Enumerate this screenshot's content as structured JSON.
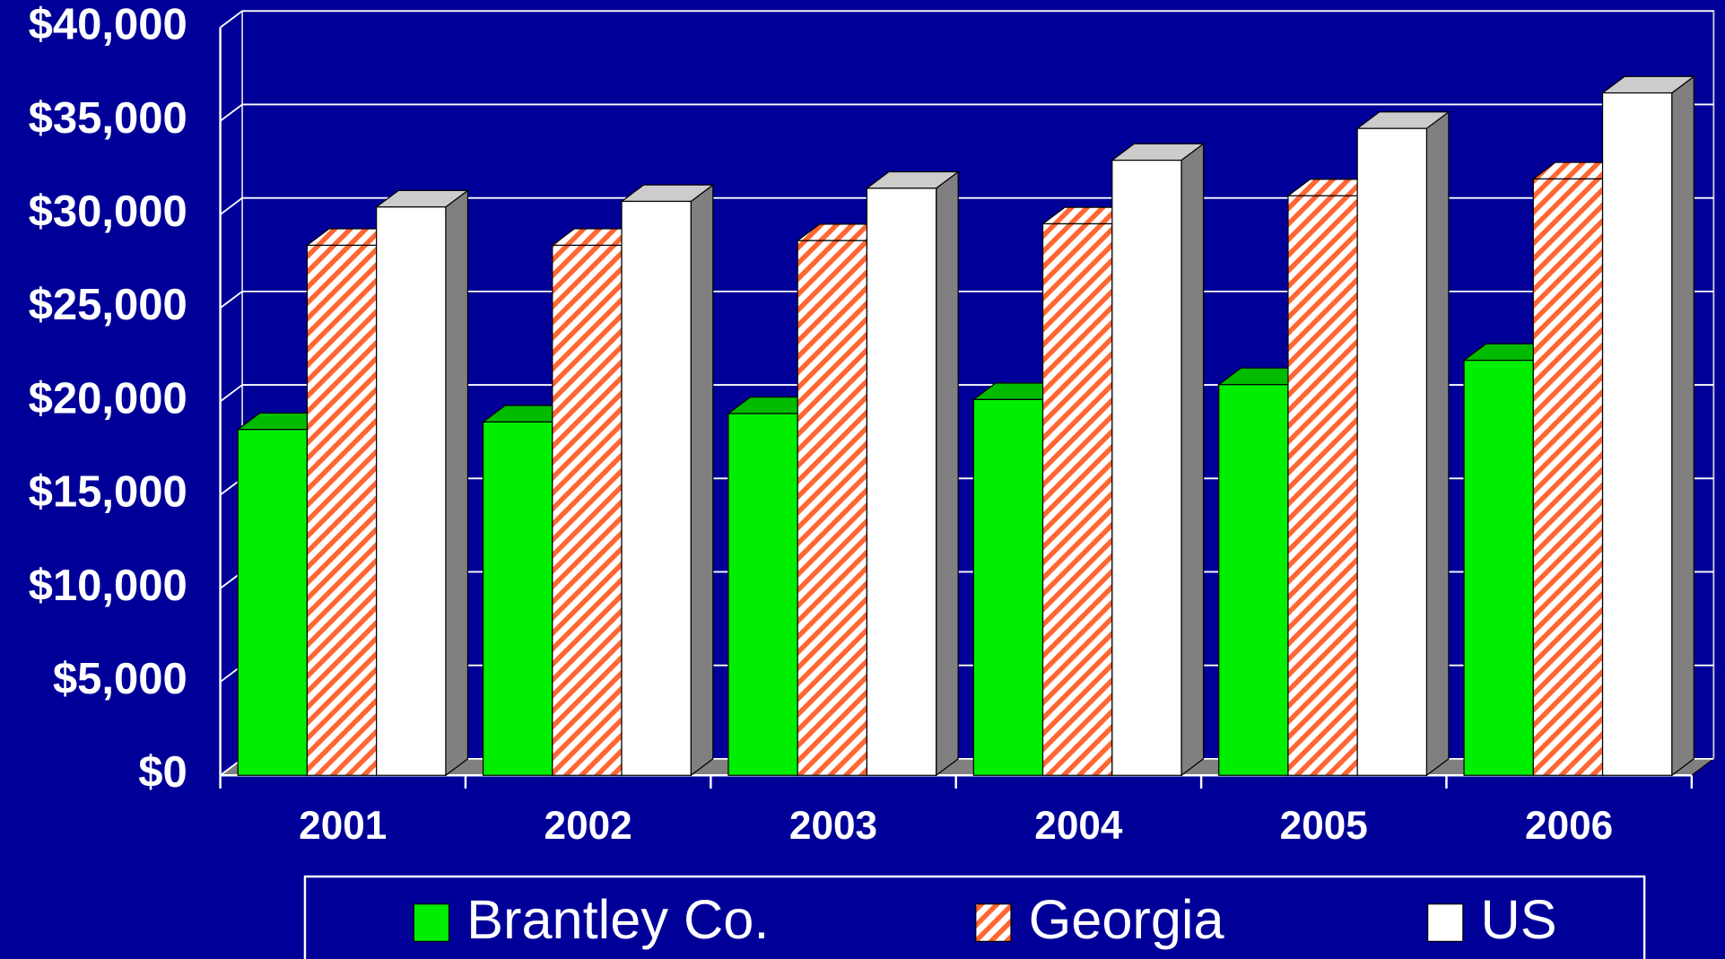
{
  "chart_data": {
    "type": "bar3d",
    "categories": [
      "2001",
      "2002",
      "2003",
      "2004",
      "2005",
      "2006"
    ],
    "series": [
      {
        "name": "Brantley Co.",
        "color": "#00ee00",
        "values": [
          18500,
          18900,
          19350,
          20100,
          20900,
          22200
        ]
      },
      {
        "name": "Georgia",
        "color": "#ff6633",
        "pattern": "hatch",
        "values": [
          28350,
          28350,
          28600,
          29500,
          31000,
          31900
        ]
      },
      {
        "name": "US",
        "color": "#ffffff",
        "values": [
          30400,
          30700,
          31400,
          32900,
          34600,
          36500
        ]
      }
    ],
    "ylim": [
      0,
      40000
    ],
    "yticks": [
      {
        "value": 0,
        "label": "$0"
      },
      {
        "value": 5000,
        "label": "$5,000"
      },
      {
        "value": 10000,
        "label": "$10,000"
      },
      {
        "value": 15000,
        "label": "$15,000"
      },
      {
        "value": 20000,
        "label": "$20,000"
      },
      {
        "value": 25000,
        "label": "$25,000"
      },
      {
        "value": 30000,
        "label": "$30,000"
      },
      {
        "value": 35000,
        "label": "$35,000"
      },
      {
        "value": 40000,
        "label": "$40,000"
      }
    ],
    "grid": true
  }
}
